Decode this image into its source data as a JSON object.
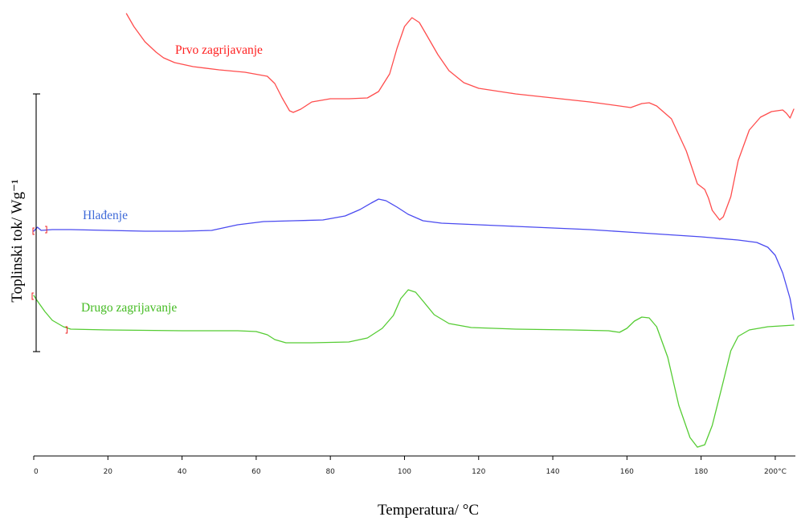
{
  "chart_data": {
    "type": "line",
    "xlabel": "Temperatura/ °C",
    "ylabel": "Toplinski tok/ Wg⁻¹",
    "xlim": [
      0,
      205
    ],
    "x_ticks": [
      0,
      20,
      40,
      60,
      80,
      100,
      120,
      140,
      160,
      180,
      200
    ],
    "x_tick_labels": [
      "0",
      "20",
      "40",
      "60",
      "80",
      "100",
      "120",
      "140",
      "160",
      "180",
      "200°C"
    ],
    "grid": false,
    "legend": "none",
    "y_tick_labels": "none",
    "series": [
      {
        "name": "Prvo zagrijavanje",
        "color": "#ff4d4d",
        "points": [
          [
            25,
            17
          ],
          [
            27,
            33
          ],
          [
            30,
            52
          ],
          [
            33,
            65
          ],
          [
            35,
            72
          ],
          [
            38,
            78
          ],
          [
            43,
            83
          ],
          [
            50,
            87
          ],
          [
            57,
            90
          ],
          [
            63,
            95
          ],
          [
            65,
            104
          ],
          [
            67,
            122
          ],
          [
            69,
            138
          ],
          [
            70,
            140
          ],
          [
            72,
            136
          ],
          [
            75,
            127
          ],
          [
            80,
            123
          ],
          [
            85,
            123
          ],
          [
            90,
            122
          ],
          [
            93,
            114
          ],
          [
            96,
            92
          ],
          [
            98,
            60
          ],
          [
            100,
            33
          ],
          [
            102,
            22
          ],
          [
            104,
            28
          ],
          [
            106,
            44
          ],
          [
            109,
            68
          ],
          [
            112,
            88
          ],
          [
            116,
            103
          ],
          [
            120,
            110
          ],
          [
            130,
            117
          ],
          [
            140,
            122
          ],
          [
            150,
            127
          ],
          [
            158,
            132
          ],
          [
            161,
            134
          ],
          [
            164,
            129
          ],
          [
            166,
            128
          ],
          [
            168,
            132
          ],
          [
            172,
            148
          ],
          [
            176,
            188
          ],
          [
            179,
            229
          ],
          [
            181,
            236
          ],
          [
            182,
            247
          ],
          [
            183,
            262
          ],
          [
            185,
            274
          ],
          [
            186,
            270
          ],
          [
            188,
            245
          ],
          [
            190,
            200
          ],
          [
            193,
            162
          ],
          [
            196,
            146
          ],
          [
            199,
            139
          ],
          [
            202,
            137
          ],
          [
            203,
            141
          ],
          [
            204,
            147
          ],
          [
            205,
            136
          ]
        ]
      },
      {
        "name": "Hlađenje",
        "color": "#4a4af0",
        "points": [
          [
            0,
            288
          ],
          [
            1,
            283
          ],
          [
            2,
            287
          ],
          [
            5,
            286
          ],
          [
            10,
            286
          ],
          [
            20,
            287
          ],
          [
            30,
            288
          ],
          [
            40,
            288
          ],
          [
            48,
            287
          ],
          [
            55,
            280
          ],
          [
            62,
            276
          ],
          [
            70,
            275
          ],
          [
            78,
            274
          ],
          [
            84,
            269
          ],
          [
            88,
            261
          ],
          [
            91,
            253
          ],
          [
            93,
            248
          ],
          [
            95,
            250
          ],
          [
            98,
            258
          ],
          [
            101,
            267
          ],
          [
            105,
            275
          ],
          [
            110,
            278
          ],
          [
            120,
            280
          ],
          [
            130,
            282
          ],
          [
            140,
            284
          ],
          [
            150,
            286
          ],
          [
            160,
            289
          ],
          [
            170,
            292
          ],
          [
            180,
            295
          ],
          [
            190,
            299
          ],
          [
            195,
            302
          ],
          [
            198,
            308
          ],
          [
            200,
            318
          ],
          [
            202,
            340
          ],
          [
            204,
            372
          ],
          [
            205,
            398
          ]
        ]
      },
      {
        "name": "Drugo zagrijavanje",
        "color": "#55cc33",
        "points": [
          [
            0,
            368
          ],
          [
            1,
            375
          ],
          [
            3,
            388
          ],
          [
            5,
            399
          ],
          [
            8,
            407
          ],
          [
            10,
            410
          ],
          [
            20,
            411
          ],
          [
            40,
            412
          ],
          [
            55,
            412
          ],
          [
            60,
            413
          ],
          [
            63,
            417
          ],
          [
            65,
            423
          ],
          [
            68,
            427
          ],
          [
            75,
            427
          ],
          [
            85,
            426
          ],
          [
            90,
            421
          ],
          [
            94,
            409
          ],
          [
            97,
            393
          ],
          [
            99,
            372
          ],
          [
            101,
            361
          ],
          [
            103,
            364
          ],
          [
            105,
            375
          ],
          [
            108,
            392
          ],
          [
            112,
            403
          ],
          [
            118,
            408
          ],
          [
            130,
            410
          ],
          [
            145,
            411
          ],
          [
            155,
            412
          ],
          [
            158,
            414
          ],
          [
            160,
            409
          ],
          [
            162,
            400
          ],
          [
            164,
            395
          ],
          [
            166,
            396
          ],
          [
            168,
            407
          ],
          [
            171,
            445
          ],
          [
            174,
            505
          ],
          [
            177,
            545
          ],
          [
            179,
            557
          ],
          [
            181,
            554
          ],
          [
            183,
            530
          ],
          [
            186,
            475
          ],
          [
            188,
            437
          ],
          [
            190,
            419
          ],
          [
            193,
            411
          ],
          [
            198,
            407
          ],
          [
            205,
            405
          ]
        ]
      }
    ],
    "annotations": [
      {
        "text": "Prvo zagrijavanje",
        "color": "#ff2020"
      },
      {
        "text": "Hlađenje",
        "color": "#3f6ad8"
      },
      {
        "text": "Drugo zagrijavanje",
        "color": "#44bb22"
      }
    ]
  }
}
